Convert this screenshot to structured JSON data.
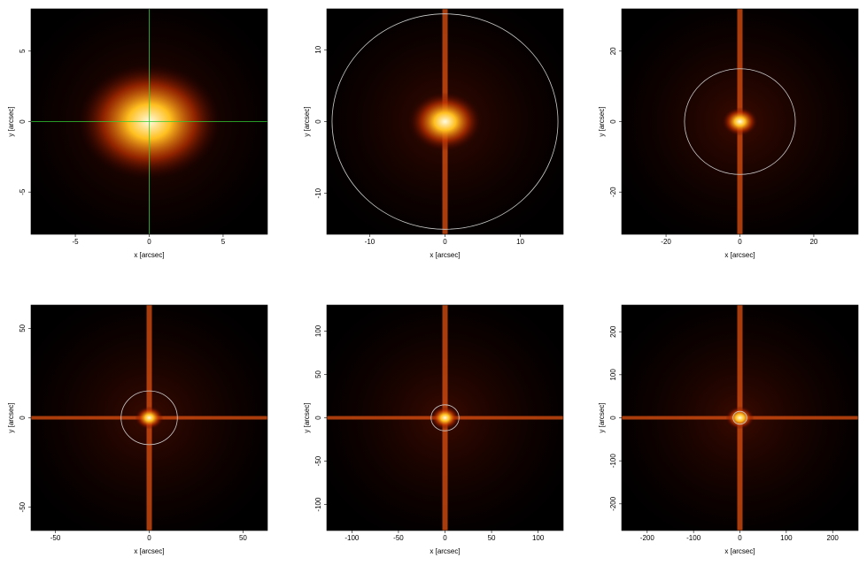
{
  "chart_data": [
    {
      "type": "image",
      "xlabel": "x [arcsec]",
      "ylabel": "y [arcsec]",
      "xlim": [
        -8,
        8
      ],
      "ylim": [
        -8,
        8
      ],
      "xticks": [
        -5,
        0,
        5
      ],
      "yticks": [
        -5,
        0,
        5
      ],
      "crosshair": true,
      "streak_vertical": false,
      "streak_horizontal": false
    },
    {
      "type": "image",
      "xlabel": "x [arcsec]",
      "ylabel": "y [arcsec]",
      "xlim": [
        -15.7,
        15.7
      ],
      "ylim": [
        -15.7,
        15.7
      ],
      "xticks": [
        -10,
        0,
        10
      ],
      "yticks": [
        -10,
        0,
        10
      ],
      "circle_radius": 15,
      "streak_vertical": true,
      "streak_horizontal": false
    },
    {
      "type": "image",
      "xlabel": "x [arcsec]",
      "ylabel": "y [arcsec]",
      "xlim": [
        -32,
        32
      ],
      "ylim": [
        -32,
        32
      ],
      "xticks": [
        -20,
        0,
        20
      ],
      "yticks": [
        -20,
        0,
        20
      ],
      "circle_radius": 15,
      "streak_vertical": true,
      "streak_horizontal": false
    },
    {
      "type": "image",
      "xlabel": "x [arcsec]",
      "ylabel": "y [arcsec]",
      "xlim": [
        -63,
        63
      ],
      "ylim": [
        -63,
        63
      ],
      "xticks": [
        -50,
        0,
        50
      ],
      "yticks": [
        -50,
        0,
        50
      ],
      "circle_radius": 15,
      "streak_vertical": true,
      "streak_horizontal": true
    },
    {
      "type": "image",
      "xlabel": "x [arcsec]",
      "ylabel": "y [arcsec]",
      "xlim": [
        -127,
        127
      ],
      "ylim": [
        -130,
        130
      ],
      "xticks": [
        -100,
        -50,
        0,
        50,
        100
      ],
      "yticks": [
        -100,
        -50,
        0,
        50,
        100
      ],
      "circle_radius": 15,
      "streak_vertical": true,
      "streak_horizontal": true
    },
    {
      "type": "image",
      "xlabel": "x [arcsec]",
      "ylabel": "y [arcsec]",
      "xlim": [
        -255,
        255
      ],
      "ylim": [
        -262,
        262
      ],
      "xticks": [
        -200,
        -100,
        0,
        100,
        200
      ],
      "yticks": [
        -200,
        -100,
        0,
        100,
        200
      ],
      "circle_radius": 15,
      "streak_vertical": true,
      "streak_horizontal": true
    }
  ]
}
